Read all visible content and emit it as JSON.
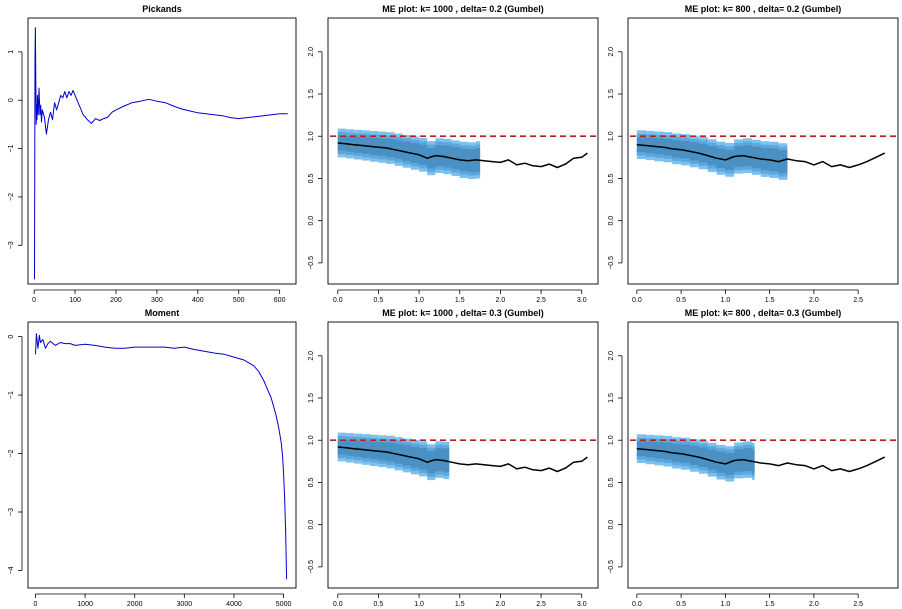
{
  "colors": {
    "hill_line": "#0000cc",
    "me_line": "#000000",
    "ref_line": "#b22222",
    "band_outer": "#7ec0ee",
    "band_mid": "#5ca8de",
    "band_inner": "#4a90c2"
  },
  "chart_data": [
    {
      "id": "pickands",
      "type": "line",
      "title": "Pickands",
      "xlim": [
        -15,
        640
      ],
      "ylim": [
        -3.8,
        1.7
      ],
      "xticks": [
        0,
        100,
        200,
        300,
        400,
        500,
        600
      ],
      "yticks": [
        -3,
        -2,
        -1,
        0,
        1
      ],
      "x": [
        1,
        2,
        3,
        4,
        5,
        6,
        7,
        8,
        10,
        12,
        14,
        16,
        18,
        20,
        25,
        30,
        35,
        40,
        45,
        50,
        55,
        60,
        65,
        70,
        75,
        80,
        85,
        90,
        95,
        100,
        110,
        120,
        130,
        140,
        150,
        160,
        170,
        180,
        190,
        200,
        220,
        240,
        260,
        280,
        300,
        320,
        340,
        360,
        380,
        400,
        420,
        440,
        460,
        480,
        500,
        520,
        540,
        560,
        580,
        600,
        620
      ],
      "y": [
        -3.7,
        0.9,
        1.5,
        0.4,
        -0.5,
        -0.1,
        -0.4,
        0.1,
        -0.3,
        0.25,
        -0.3,
        -0.1,
        -0.45,
        -0.2,
        -0.35,
        -0.7,
        -0.4,
        -0.25,
        -0.4,
        -0.05,
        -0.2,
        -0.05,
        0.1,
        0.05,
        0.18,
        0.05,
        0.18,
        0.1,
        0.2,
        0.1,
        -0.1,
        -0.3,
        -0.4,
        -0.48,
        -0.38,
        -0.42,
        -0.38,
        -0.35,
        -0.25,
        -0.2,
        -0.12,
        -0.05,
        -0.02,
        0.02,
        -0.02,
        -0.05,
        -0.12,
        -0.18,
        -0.22,
        -0.26,
        -0.28,
        -0.3,
        -0.32,
        -0.36,
        -0.38,
        -0.36,
        -0.34,
        -0.32,
        -0.3,
        -0.28,
        -0.28
      ]
    },
    {
      "id": "moment",
      "type": "line",
      "title": "Moment",
      "xlim": [
        -150,
        5250
      ],
      "ylim": [
        -4.3,
        0.25
      ],
      "xticks": [
        0,
        1000,
        2000,
        3000,
        4000,
        5000
      ],
      "yticks": [
        -4,
        -3,
        -2,
        -1,
        0
      ],
      "x": [
        1,
        20,
        50,
        80,
        100,
        150,
        200,
        250,
        300,
        400,
        500,
        600,
        700,
        800,
        1000,
        1200,
        1400,
        1600,
        1800,
        2000,
        2200,
        2400,
        2600,
        2800,
        3000,
        3200,
        3400,
        3600,
        3800,
        4000,
        4200,
        4300,
        4400,
        4500,
        4600,
        4700,
        4750,
        4800,
        4850,
        4900,
        4950,
        4980,
        5000,
        5020,
        5040,
        5060
      ],
      "y": [
        -0.3,
        0.05,
        -0.2,
        0.02,
        -0.1,
        -0.05,
        -0.2,
        -0.12,
        -0.08,
        -0.15,
        -0.1,
        -0.12,
        -0.12,
        -0.15,
        -0.13,
        -0.15,
        -0.18,
        -0.2,
        -0.2,
        -0.18,
        -0.18,
        -0.18,
        -0.18,
        -0.2,
        -0.18,
        -0.22,
        -0.25,
        -0.28,
        -0.3,
        -0.35,
        -0.4,
        -0.45,
        -0.5,
        -0.6,
        -0.75,
        -0.95,
        -1.05,
        -1.2,
        -1.35,
        -1.55,
        -1.8,
        -2.05,
        -2.35,
        -2.75,
        -3.3,
        -4.15
      ]
    },
    {
      "id": "me-1000-02",
      "type": "line",
      "title": "ME plot: k= 1000 , delta= 0.2  (Gumbel)",
      "xlim": [
        -0.12,
        3.2
      ],
      "ylim": [
        -0.75,
        2.4
      ],
      "xticks": [
        0,
        0.5,
        1,
        1.5,
        2,
        2.5,
        3
      ],
      "xtick_labels": [
        "0.0",
        "0.5",
        "1.0",
        "1.5",
        "2.0",
        "2.5",
        "3.0"
      ],
      "yticks": [
        -0.5,
        0,
        0.5,
        1,
        1.5,
        2
      ],
      "ytick_labels": [
        "−0.5",
        "0.0",
        "0.5",
        "1.0",
        "1.5",
        "2.0"
      ],
      "reference_y": 1.0,
      "band_xmax": 1.75,
      "x": [
        0.0,
        0.1,
        0.2,
        0.3,
        0.4,
        0.5,
        0.6,
        0.7,
        0.8,
        0.9,
        1.0,
        1.1,
        1.2,
        1.3,
        1.4,
        1.5,
        1.6,
        1.7,
        1.8,
        1.9,
        2.0,
        2.1,
        2.2,
        2.3,
        2.4,
        2.5,
        2.6,
        2.7,
        2.8,
        2.9,
        3.0,
        3.07
      ],
      "y": [
        0.92,
        0.91,
        0.9,
        0.89,
        0.88,
        0.87,
        0.86,
        0.84,
        0.82,
        0.8,
        0.78,
        0.74,
        0.77,
        0.76,
        0.74,
        0.72,
        0.71,
        0.72,
        0.71,
        0.7,
        0.69,
        0.72,
        0.66,
        0.68,
        0.65,
        0.64,
        0.67,
        0.63,
        0.67,
        0.74,
        0.75,
        0.8
      ]
    },
    {
      "id": "me-800-02",
      "type": "line",
      "title": "ME plot: k= 800 , delta= 0.2  (Gumbel)",
      "xlim": [
        -0.1,
        2.95
      ],
      "ylim": [
        -0.75,
        2.4
      ],
      "xticks": [
        0,
        0.5,
        1,
        1.5,
        2,
        2.5
      ],
      "xtick_labels": [
        "0.0",
        "0.5",
        "1.0",
        "1.5",
        "2.0",
        "2.5"
      ],
      "yticks": [
        -0.5,
        0,
        0.5,
        1,
        1.5,
        2
      ],
      "ytick_labels": [
        "−0.5",
        "0.0",
        "0.5",
        "1.0",
        "1.5",
        "2.0"
      ],
      "reference_y": 1.0,
      "band_xmax": 1.7,
      "x": [
        0.0,
        0.1,
        0.2,
        0.3,
        0.4,
        0.5,
        0.6,
        0.7,
        0.8,
        0.9,
        1.0,
        1.1,
        1.2,
        1.3,
        1.4,
        1.5,
        1.6,
        1.7,
        1.8,
        1.9,
        2.0,
        2.1,
        2.2,
        2.3,
        2.4,
        2.5,
        2.6,
        2.7,
        2.8
      ],
      "y": [
        0.9,
        0.89,
        0.88,
        0.87,
        0.85,
        0.84,
        0.82,
        0.8,
        0.77,
        0.74,
        0.72,
        0.76,
        0.77,
        0.75,
        0.73,
        0.72,
        0.7,
        0.73,
        0.71,
        0.7,
        0.66,
        0.7,
        0.64,
        0.66,
        0.63,
        0.66,
        0.7,
        0.75,
        0.8
      ]
    },
    {
      "id": "me-1000-03",
      "type": "line",
      "title": "ME plot: k= 1000 , delta= 0.3  (Gumbel)",
      "xlim": [
        -0.12,
        3.2
      ],
      "ylim": [
        -0.75,
        2.4
      ],
      "xticks": [
        0,
        0.5,
        1,
        1.5,
        2,
        2.5,
        3
      ],
      "xtick_labels": [
        "0.0",
        "0.5",
        "1.0",
        "1.5",
        "2.0",
        "2.5",
        "3.0"
      ],
      "yticks": [
        -0.5,
        0,
        0.5,
        1,
        1.5,
        2
      ],
      "ytick_labels": [
        "−0.5",
        "0.0",
        "0.5",
        "1.0",
        "1.5",
        "2.0"
      ],
      "reference_y": 1.0,
      "band_xmax": 1.37,
      "x": [
        0.0,
        0.1,
        0.2,
        0.3,
        0.4,
        0.5,
        0.6,
        0.7,
        0.8,
        0.9,
        1.0,
        1.1,
        1.2,
        1.3,
        1.4,
        1.5,
        1.6,
        1.7,
        1.8,
        1.9,
        2.0,
        2.1,
        2.2,
        2.3,
        2.4,
        2.5,
        2.6,
        2.7,
        2.8,
        2.9,
        3.0,
        3.07
      ],
      "y": [
        0.92,
        0.91,
        0.9,
        0.89,
        0.88,
        0.87,
        0.86,
        0.84,
        0.82,
        0.8,
        0.78,
        0.74,
        0.77,
        0.76,
        0.74,
        0.72,
        0.71,
        0.72,
        0.71,
        0.7,
        0.69,
        0.72,
        0.66,
        0.68,
        0.65,
        0.64,
        0.67,
        0.63,
        0.67,
        0.74,
        0.75,
        0.8
      ]
    },
    {
      "id": "me-800-03",
      "type": "line",
      "title": "ME plot: k= 800 , delta= 0.3  (Gumbel)",
      "xlim": [
        -0.1,
        2.95
      ],
      "ylim": [
        -0.75,
        2.4
      ],
      "xticks": [
        0,
        0.5,
        1,
        1.5,
        2,
        2.5
      ],
      "xtick_labels": [
        "0.0",
        "0.5",
        "1.0",
        "1.5",
        "2.0",
        "2.5"
      ],
      "yticks": [
        -0.5,
        0,
        0.5,
        1,
        1.5,
        2
      ],
      "ytick_labels": [
        "−0.5",
        "0.0",
        "0.5",
        "1.0",
        "1.5",
        "2.0"
      ],
      "reference_y": 1.0,
      "band_xmax": 1.33,
      "x": [
        0.0,
        0.1,
        0.2,
        0.3,
        0.4,
        0.5,
        0.6,
        0.7,
        0.8,
        0.9,
        1.0,
        1.1,
        1.2,
        1.3,
        1.4,
        1.5,
        1.6,
        1.7,
        1.8,
        1.9,
        2.0,
        2.1,
        2.2,
        2.3,
        2.4,
        2.5,
        2.6,
        2.7,
        2.8
      ],
      "y": [
        0.9,
        0.89,
        0.88,
        0.87,
        0.85,
        0.84,
        0.82,
        0.8,
        0.77,
        0.74,
        0.72,
        0.76,
        0.77,
        0.75,
        0.73,
        0.72,
        0.7,
        0.73,
        0.71,
        0.7,
        0.66,
        0.7,
        0.64,
        0.66,
        0.63,
        0.66,
        0.7,
        0.75,
        0.8
      ]
    }
  ]
}
